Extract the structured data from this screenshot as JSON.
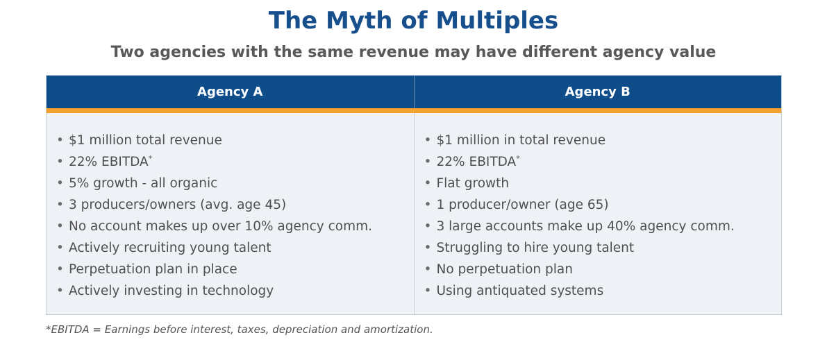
{
  "title": "The Myth of Multiples",
  "subtitle": "Two agencies with the same revenue may have different agency value",
  "colors": {
    "title": "#174f8c",
    "header_bg": "#0e4c8a",
    "header_accent": "#f5a12e",
    "body_bg": "#eef1f6"
  },
  "table": {
    "agency_a": {
      "header": "Agency A",
      "items": [
        {
          "text": "$1 million total revenue",
          "sup": ""
        },
        {
          "text": "22% EBITDA",
          "sup": "*"
        },
        {
          "text": "5% growth - all organic",
          "sup": ""
        },
        {
          "text": "3 producers/owners (avg. age 45)",
          "sup": ""
        },
        {
          "text": "No account makes up over 10% agency comm.",
          "sup": ""
        },
        {
          "text": "Actively recruiting young talent",
          "sup": ""
        },
        {
          "text": "Perpetuation plan in place",
          "sup": ""
        },
        {
          "text": "Actively investing in technology",
          "sup": ""
        }
      ]
    },
    "agency_b": {
      "header": "Agency B",
      "items": [
        {
          "text": "$1 million in total revenue",
          "sup": ""
        },
        {
          "text": "22% EBITDA",
          "sup": "*"
        },
        {
          "text": "Flat growth",
          "sup": ""
        },
        {
          "text": "1 producer/owner (age 65)",
          "sup": ""
        },
        {
          "text": "3 large accounts make up 40% agency comm.",
          "sup": ""
        },
        {
          "text": "Struggling to hire young talent",
          "sup": ""
        },
        {
          "text": "No perpetuation plan",
          "sup": ""
        },
        {
          "text": "Using antiquated systems",
          "sup": ""
        }
      ]
    }
  },
  "bullet": "•",
  "footnote": "*EBITDA = Earnings before interest, taxes, depreciation and amortization."
}
